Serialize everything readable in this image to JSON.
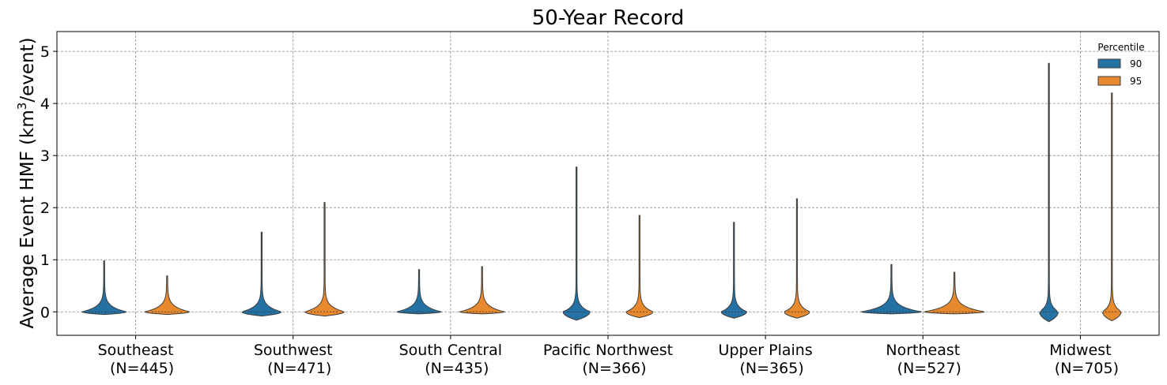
{
  "chart_data": {
    "type": "violin",
    "title": "50-Year Record",
    "ylabel_main": "Average Event HMF (km",
    "ylabel_sup": "3",
    "ylabel_tail": "/event)",
    "xlabel": "",
    "ylim": [
      -0.45,
      5.38
    ],
    "yticks": [
      0,
      1,
      2,
      3,
      4,
      5
    ],
    "ytick_labels": [
      "0",
      "1",
      "2",
      "3",
      "4",
      "5"
    ],
    "grid": true,
    "categories": [
      {
        "name": "Southeast",
        "n_label": "(N=445)"
      },
      {
        "name": "Southwest",
        "n_label": "(N=471)"
      },
      {
        "name": "South Central",
        "n_label": "(N=435)"
      },
      {
        "name": "Pacific Northwest",
        "n_label": "(N=366)"
      },
      {
        "name": "Upper Plains",
        "n_label": "(N=365)"
      },
      {
        "name": "Northeast",
        "n_label": "(N=527)"
      },
      {
        "name": "Midwest",
        "n_label": "(N=705)"
      }
    ],
    "legend": {
      "title": "Percentile",
      "position": "top-right"
    },
    "series": [
      {
        "name": "90",
        "color": "#2471a3",
        "min": [
          -0.05,
          -0.08,
          -0.04,
          -0.16,
          -0.12,
          -0.04,
          -0.19
        ],
        "max": [
          0.98,
          1.53,
          0.81,
          2.78,
          1.72,
          0.91,
          4.77
        ]
      },
      {
        "name": "95",
        "color": "#e8892e",
        "min": [
          -0.05,
          -0.08,
          -0.04,
          -0.11,
          -0.12,
          -0.04,
          -0.17
        ],
        "max": [
          0.69,
          2.1,
          0.87,
          1.85,
          2.17,
          0.76,
          4.2
        ]
      }
    ]
  }
}
